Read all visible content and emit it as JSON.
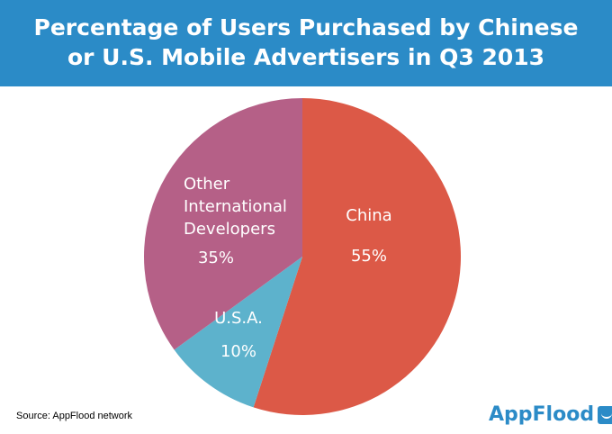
{
  "title_lines": [
    "Percentage of Users Purchased by Chinese",
    "or U.S. Mobile Advertisers in Q3 2013"
  ],
  "chart_data": {
    "type": "pie",
    "title": "Percentage of Users Purchased by Chinese or U.S. Mobile Advertisers in Q3 2013",
    "slices": [
      {
        "label": "China",
        "label_lines": [
          "China"
        ],
        "value": 55,
        "value_label": "55%",
        "color": "#dc5947"
      },
      {
        "label": "U.S.A.",
        "label_lines": [
          "U.S.A."
        ],
        "value": 10,
        "value_label": "10%",
        "color": "#5db2cc"
      },
      {
        "label": "Other International Developers",
        "label_lines": [
          "Other",
          "International",
          "Developers"
        ],
        "value": 35,
        "value_label": "35%",
        "color": "#b56087"
      }
    ]
  },
  "source": "Source: AppFlood network",
  "logo": "AppFlood",
  "header_color": "#2b8bc7"
}
